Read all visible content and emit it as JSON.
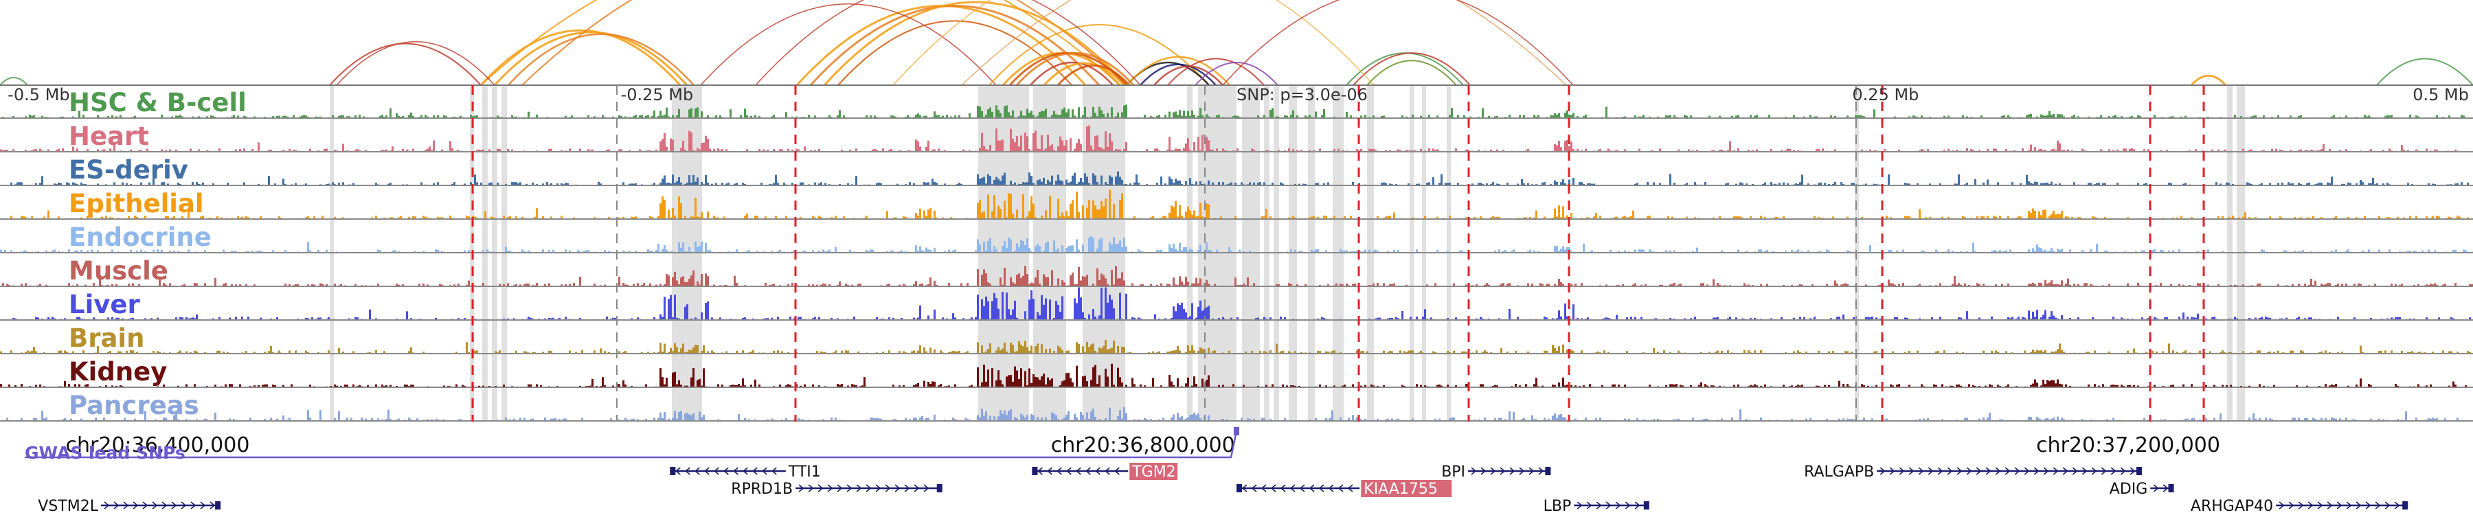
{
  "position_labels": [
    {
      "text": "-0.5 Mb",
      "pos": 36338000
    },
    {
      "text": "-0.25 Mb",
      "pos": 36588000
    },
    {
      "text": "SNP: p=3.0e-06",
      "pos": 36838000
    },
    {
      "text": "0.25 Mb",
      "pos": 37088000
    },
    {
      "text": "0.5 Mb",
      "pos": 37338000
    }
  ],
  "coordinate_ticks": [
    {
      "text": "chr20:36,400,000",
      "pos": 36400000
    },
    {
      "text": "chr20:36,800,000",
      "pos": 36800000
    },
    {
      "text": "chr20:37,200,000",
      "pos": 37200000
    }
  ],
  "view": {
    "start": 36336000,
    "end": 37340000
  },
  "lead_snp": {
    "pos": 36838000
  },
  "gwas_track_label": "GWAS lead SNPs",
  "tracks": [
    {
      "name": "HSC & B-cell",
      "color": "#4f9a4f"
    },
    {
      "name": "Heart",
      "color": "#d8707f"
    },
    {
      "name": "ES-deriv",
      "color": "#4270a6"
    },
    {
      "name": "Epithelial",
      "color": "#f39c12"
    },
    {
      "name": "Endocrine",
      "color": "#8fb8ec"
    },
    {
      "name": "Muscle",
      "color": "#c0605d"
    },
    {
      "name": "Liver",
      "color": "#4a4de0"
    },
    {
      "name": "Brain",
      "color": "#b8902c"
    },
    {
      "name": "Kidney",
      "color": "#6b0f0f"
    },
    {
      "name": "Pancreas",
      "color": "#8ba6dc"
    }
  ],
  "genes": [
    {
      "name": "TTI1",
      "start": 36608000,
      "end": 36655000,
      "strand": "-",
      "row": 0,
      "label_side": "right",
      "highlight": false
    },
    {
      "name": "TGM2",
      "start": 36755000,
      "end": 36794000,
      "strand": "-",
      "row": 0,
      "label_side": "right",
      "highlight": true
    },
    {
      "name": "BPI",
      "start": 36932000,
      "end": 36965000,
      "strand": "+",
      "row": 0,
      "label_side": "left",
      "highlight": false
    },
    {
      "name": "RALGAPB",
      "start": 37098000,
      "end": 37205000,
      "strand": "+",
      "row": 0,
      "label_side": "left",
      "highlight": false
    },
    {
      "name": "RPRD1B",
      "start": 36659000,
      "end": 36718000,
      "strand": "+",
      "row": 1,
      "label_side": "left",
      "highlight": false
    },
    {
      "name": "KIAA1755",
      "start": 36838000,
      "end": 36888000,
      "strand": "-",
      "row": 1,
      "label_side": "right",
      "highlight": true
    },
    {
      "name": "ADIG",
      "start": 37209000,
      "end": 37218000,
      "strand": "+",
      "row": 1,
      "label_side": "left",
      "highlight": false
    },
    {
      "name": "VSTM2L",
      "start": 36377000,
      "end": 36425000,
      "strand": "+",
      "row": 2,
      "label_side": "left",
      "highlight": false
    },
    {
      "name": "LBP",
      "start": 36975000,
      "end": 37005000,
      "strand": "+",
      "row": 2,
      "label_side": "left",
      "highlight": false
    },
    {
      "name": "ARHGAP40",
      "start": 37260000,
      "end": 37313000,
      "strand": "+",
      "row": 2,
      "label_side": "left",
      "highlight": false
    }
  ],
  "colors": {
    "highlight_region": "#e0e0e0",
    "boundary_line": "#e0202a",
    "gene_body": "#1c1c6e",
    "gene_highlight": "#d86878",
    "gwas": "#6a5acd"
  }
}
